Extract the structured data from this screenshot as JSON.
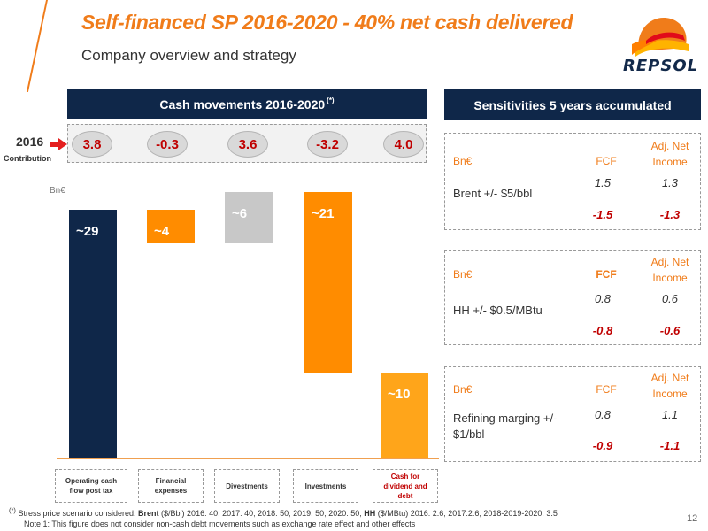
{
  "title": "Self-financed SP 2016-2020 - 40% net cash delivered",
  "subtitle": "Company overview and strategy",
  "logo_text": "REPSOL",
  "cash_header": "Cash movements 2016-2020",
  "cash_header_mark": "(*)",
  "sens_header": "Sensitivities 5 years accumulated",
  "contribution": {
    "year": "2016",
    "label": "Contribution",
    "values": [
      "3.8",
      "-0.3",
      "3.6",
      "-3.2",
      "4.0"
    ]
  },
  "unit": "Bn€",
  "chart_data": {
    "type": "bar",
    "categories": [
      "Operating cash flow post tax",
      "Financial expenses",
      "Divestments",
      "Investments",
      "Cash for dividend and debt"
    ],
    "values": [
      29,
      -4,
      6,
      -21,
      10
    ],
    "labels": [
      "~29",
      "~4",
      "~6",
      "~21",
      "~10"
    ],
    "colors": [
      "#0f2749",
      "#ff8c00",
      "#c8c8c8",
      "#ff8c00",
      "#ffa51a"
    ]
  },
  "categories": [
    "Operating cash flow post tax",
    "Financial expenses",
    "Divestments",
    "Investments",
    "Cash for dividend and debt"
  ],
  "sensitivities": [
    {
      "unit": "Bn€",
      "col1": "FCF",
      "col2": "Adj. Net Income",
      "label": "Brent +/- $5/bbl",
      "pos": [
        "1.5",
        "1.3"
      ],
      "neg": [
        "-1.5",
        "-1.3"
      ]
    },
    {
      "unit": "Bn€",
      "col1": "FCF",
      "col2": "Adj. Net Income",
      "label": "HH +/- $0.5/MBtu",
      "pos": [
        "0.8",
        "0.6"
      ],
      "neg": [
        "-0.8",
        "-0.6"
      ]
    },
    {
      "unit": "Bn€",
      "col1": "FCF",
      "col2": "Adj. Net Income",
      "label": "Refining marging +/- $1/bbl",
      "pos": [
        "0.8",
        "1.1"
      ],
      "neg": [
        "-0.9",
        "-1.1"
      ]
    }
  ],
  "footnote": {
    "mark": "(*)",
    "line1_a": "Stress price scenario considered:",
    "brent_label": "Brent",
    "line1_b": "($/Bbl) 2016: 40; 2017: 40; 2018: 50; 2019: 50; 2020: 50;",
    "hh_label": "HH",
    "line1_c": "($/MBtu) 2016:  2.6; 2017:2.6; 2018-2019-2020: 3.5",
    "line2": "Note 1: This figure does not consider non-cash debt movements such as exchange rate effect and other effects"
  },
  "page_number": "12",
  "colors": {
    "accent": "#f07c1a",
    "navy": "#0f2749",
    "negative": "#c00000"
  }
}
